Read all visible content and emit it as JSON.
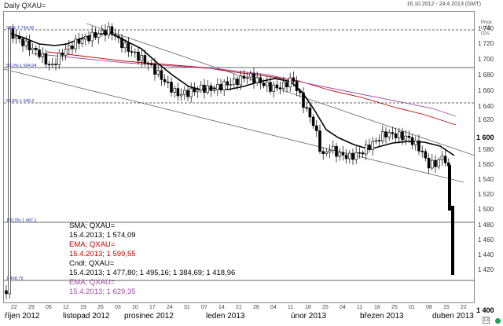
{
  "header": {
    "title": "Daily QXAU=",
    "date_range": "16.10.2012 - 24.4.2013 (GMT)"
  },
  "axis": {
    "unit_lines": [
      "Price",
      "USD",
      "Ozs"
    ],
    "y_ticks": [
      "1 740",
      "1 720",
      "1 700",
      "1 680",
      "1 660",
      "1 640",
      "1 620",
      "1 580",
      "1 560",
      "1 540",
      "1 520",
      "1 500",
      "1 480",
      "1 460",
      "1 440",
      "1 420"
    ],
    "y_current_values": [
      "1 600",
      "1 400"
    ],
    "x_days": [
      "22",
      "29",
      "05",
      "12",
      "19",
      "26",
      "03",
      "10",
      "17",
      "24",
      "31",
      "07",
      "14",
      "21",
      "28",
      "04",
      "11",
      "18",
      "25",
      "04",
      "11",
      "18",
      "25",
      "01",
      "08",
      "15",
      "22"
    ],
    "months": [
      "říjen 2012",
      "listopad 2012",
      "prosinec 2012",
      "leden 2013",
      "únor 2013",
      "březen 2013",
      "duben 2013"
    ]
  },
  "fib_labels": [
    "0,0% 1 743,90",
    "50,0% 1 694,04",
    "61,8% 1 645,2",
    "100,0% 1 487,1",
    "1 408,79"
  ],
  "legend": {
    "sma_name": "SMA; QXAU=",
    "sma_value": "15.4.2013; 1 574,09",
    "ema1_name": "EMA; QXAU=",
    "ema1_value": "15.4.2013; 1 599,55",
    "cndl_name": "Cndl; QXAU=",
    "cndl_value": "15.4.2013; 1 477,80; 1 495,16; 1 384,69; 1 418,96",
    "ema2_name": "EMA; QXAU=",
    "ema2_value": "15.4.2013; 1 629,35"
  },
  "colors": {
    "sma": "#000000",
    "ema1": "#c00000",
    "ema2": "#a04da0",
    "candle": "#000000",
    "channel": "#555555",
    "status": "#1aa35a"
  },
  "controls": {
    "end_box": "13"
  }
}
